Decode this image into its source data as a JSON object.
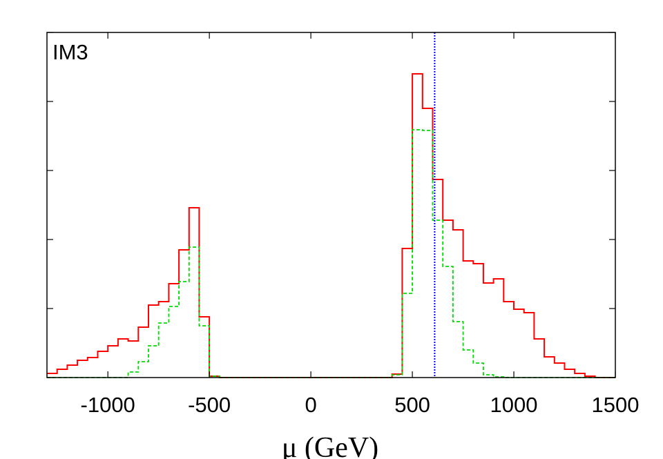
{
  "chart_data": {
    "type": "histogram",
    "panel_label": "IM3",
    "xlabel": "μ (GeV)",
    "ylabel": "",
    "xlim": [
      -1300,
      1500
    ],
    "ylim": [
      0,
      5
    ],
    "x_ticks": [
      -1000,
      -500,
      0,
      500,
      1000,
      1500
    ],
    "x_tick_labels": [
      "-1000",
      "-500",
      "0",
      "500",
      "1000",
      "1500"
    ],
    "y_ticks": [
      0,
      1,
      2,
      3,
      4,
      5
    ],
    "bin_width": 50,
    "bin_start": -1300,
    "series": [
      {
        "color": "#ff0000",
        "style": "solid",
        "values": [
          0.06,
          0.12,
          0.18,
          0.25,
          0.29,
          0.38,
          0.46,
          0.56,
          0.53,
          0.73,
          1.05,
          1.1,
          1.36,
          1.85,
          2.46,
          0.88,
          0.02,
          0,
          0,
          0,
          0,
          0,
          0,
          0,
          0,
          0,
          0,
          0,
          0,
          0,
          0,
          0,
          0,
          0,
          0.05,
          1.87,
          4.4,
          3.9,
          2.87,
          2.28,
          2.14,
          1.69,
          1.65,
          1.37,
          1.43,
          1.1,
          0.99,
          0.94,
          0.56,
          0.3,
          0.21,
          0.12,
          0.06,
          0.02,
          0.0,
          0.0
        ]
      },
      {
        "color": "#00dd00",
        "style": "dashed",
        "values": [
          0,
          0,
          0,
          0,
          0,
          0,
          0,
          0,
          0.08,
          0.23,
          0.46,
          0.79,
          1.03,
          1.39,
          1.89,
          0.75,
          0.02,
          0,
          0,
          0,
          0,
          0,
          0,
          0,
          0,
          0,
          0,
          0,
          0,
          0,
          0,
          0,
          0,
          0,
          0.04,
          1.22,
          3.59,
          3.58,
          2.28,
          1.61,
          0.81,
          0.4,
          0.21,
          0.04,
          0.01,
          0.0,
          0.0,
          0.0,
          0.0,
          0.0,
          0.0,
          0.0,
          0.0,
          0.0,
          0.0,
          0.0
        ]
      }
    ],
    "reference_line": {
      "x": 610,
      "color": "#0000ff",
      "style": "dotted"
    },
    "grid": false,
    "legend": "none"
  }
}
